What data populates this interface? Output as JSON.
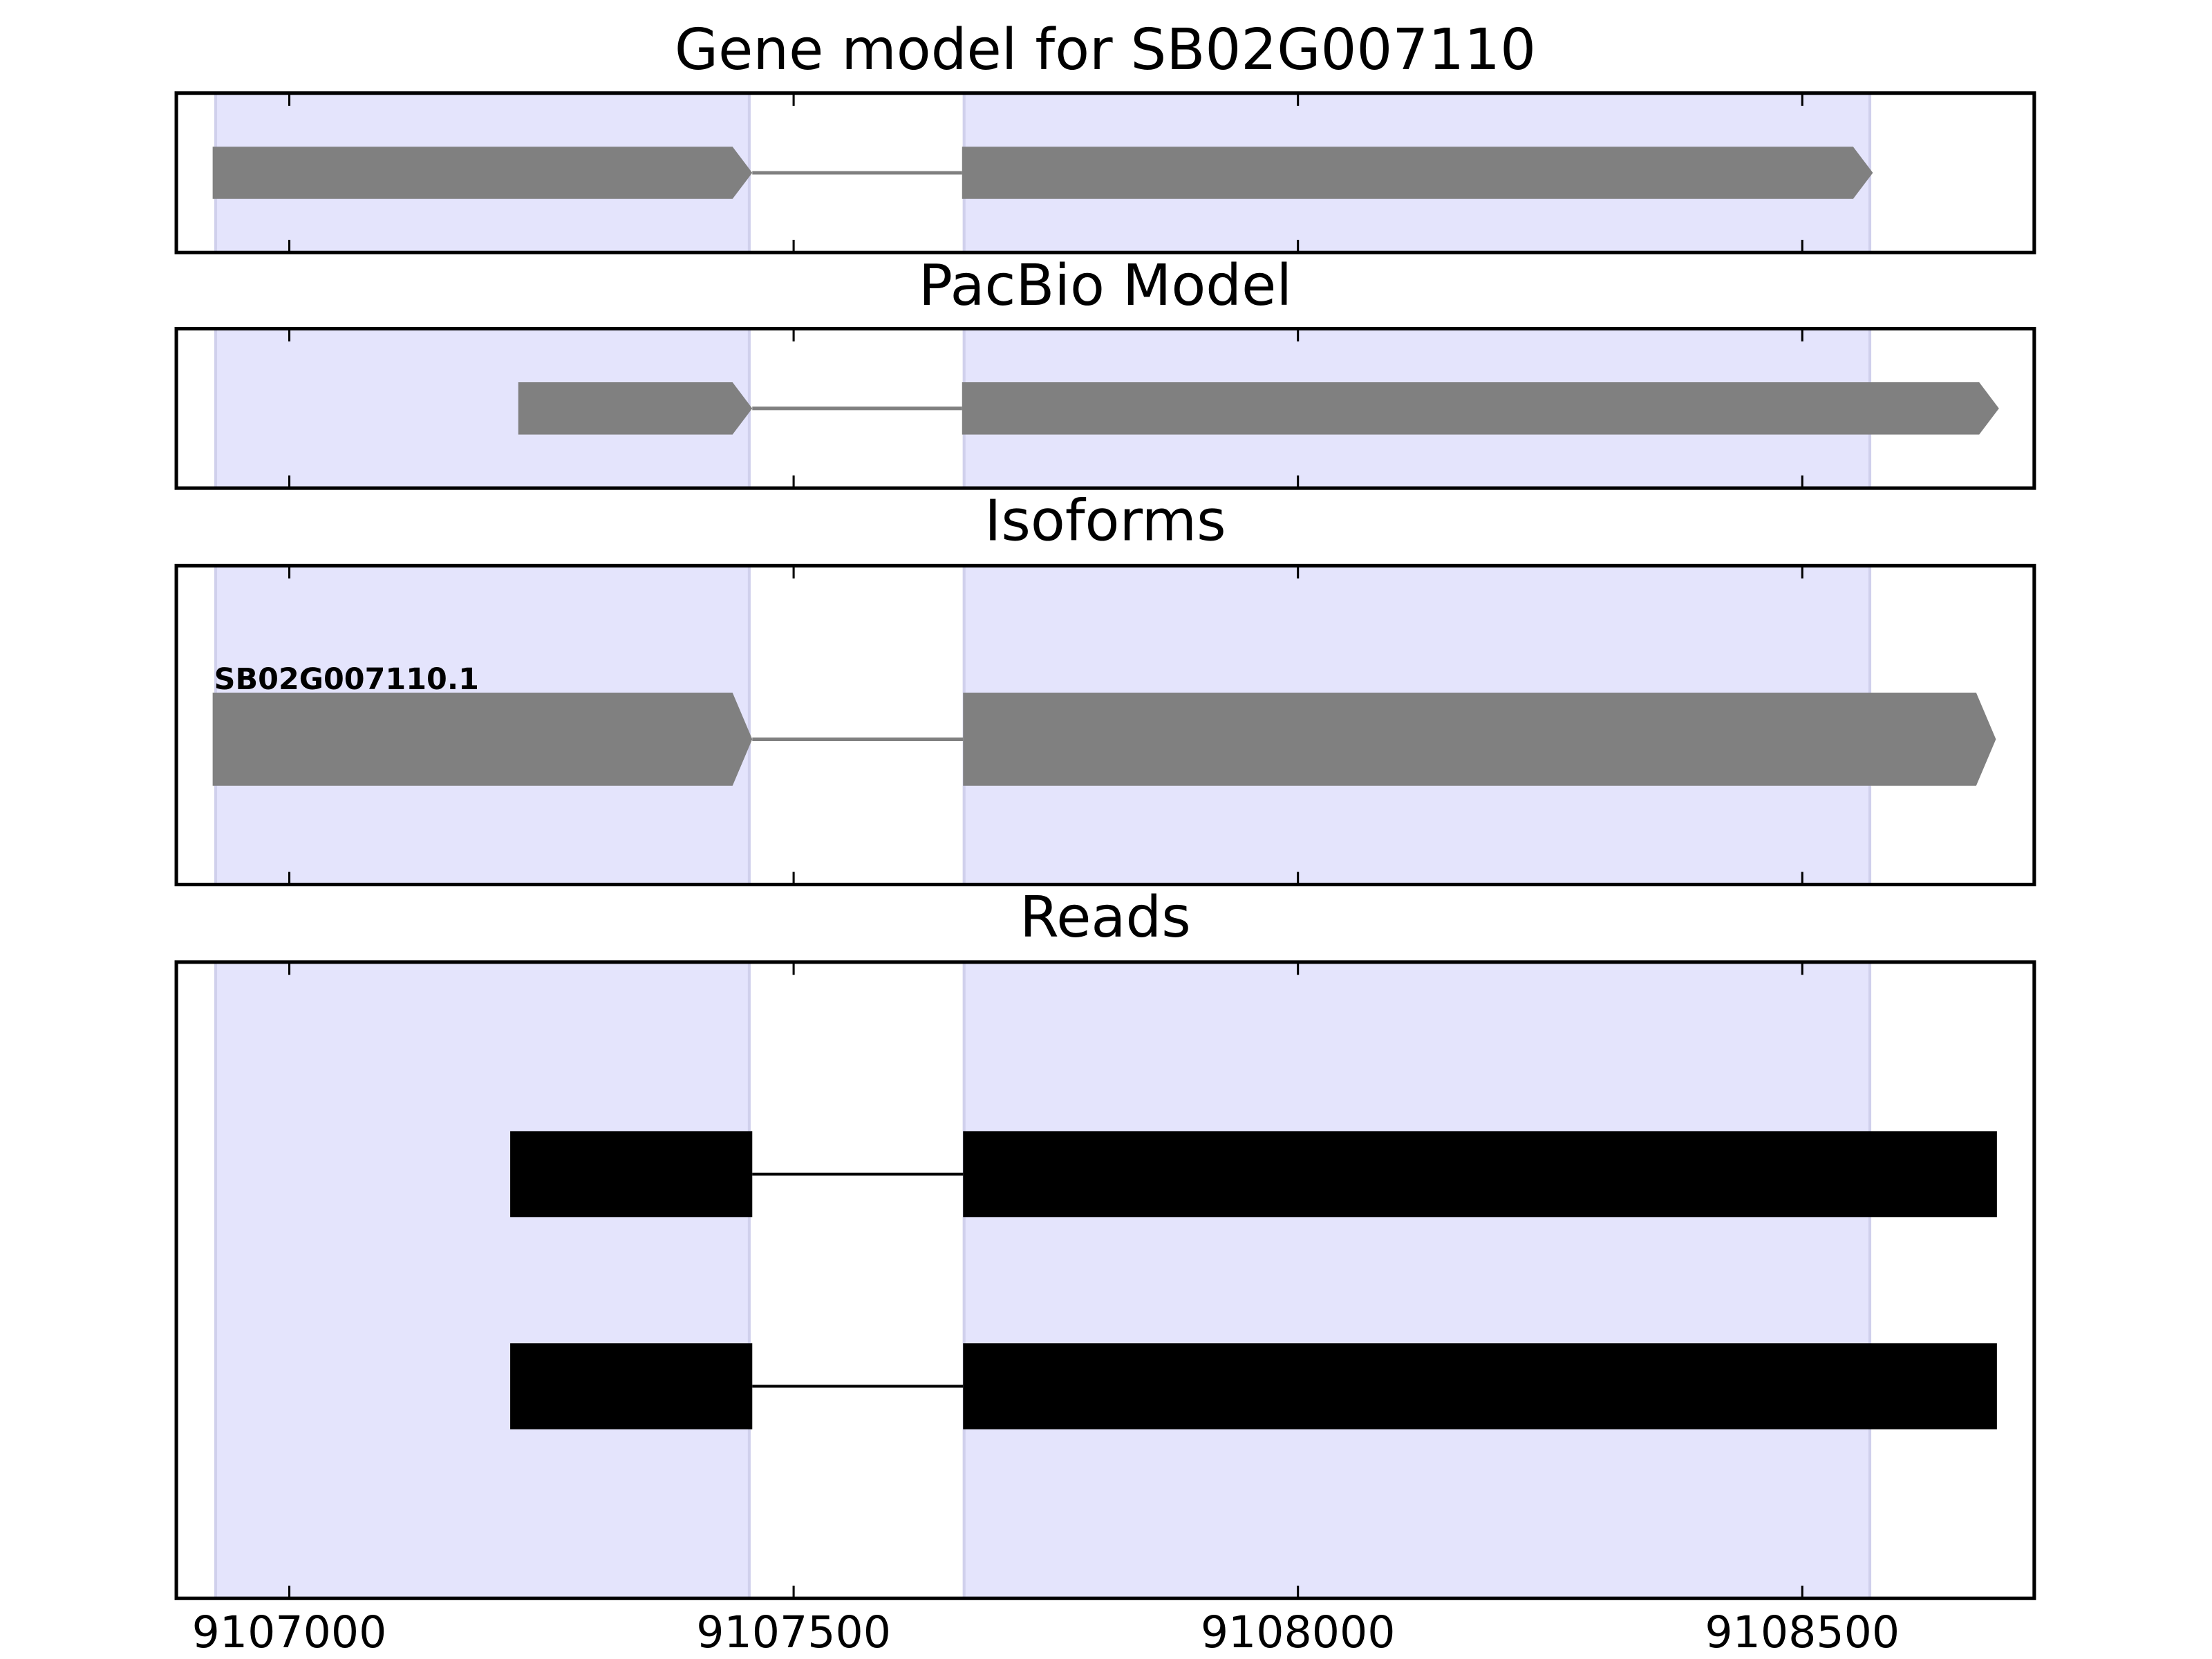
{
  "chart_data": [
    {
      "type": "gene",
      "title": "Gene model for SB02G007110",
      "color": "#808080",
      "arrows": true,
      "region_color": "#e4e4fc",
      "regions": [
        [
          9106927,
          9107456
        ],
        [
          9107669,
          9108567
        ]
      ],
      "xlim": [
        9106888,
        9108730
      ],
      "xticks": [
        9107000,
        9107500,
        9108000,
        9108500
      ],
      "tracks": [
        {
          "exons": [
            [
              9106924,
              9107459
            ],
            [
              9107667,
              9108570
            ]
          ]
        }
      ]
    },
    {
      "type": "gene",
      "title": "PacBio Model",
      "color": "#808080",
      "arrows": true,
      "region_color": "#e4e4fc",
      "regions": [
        [
          9106927,
          9107456
        ],
        [
          9107669,
          9108567
        ]
      ],
      "xlim": [
        9106888,
        9108730
      ],
      "xticks": [
        9107000,
        9107500,
        9108000,
        9108500
      ],
      "tracks": [
        {
          "exons": [
            [
              9107227,
              9107459
            ],
            [
              9107667,
              9108695
            ]
          ]
        }
      ]
    },
    {
      "type": "gene",
      "title": "Isoforms",
      "color": "#808080",
      "arrows": true,
      "region_color": "#e4e4fc",
      "regions": [
        [
          9106927,
          9107456
        ],
        [
          9107669,
          9108567
        ]
      ],
      "xlim": [
        9106888,
        9108730
      ],
      "xticks": [
        9107000,
        9107500,
        9108000,
        9108500
      ],
      "tracks": [
        {
          "name": "SB02G007110.1",
          "exons": [
            [
              9106924,
              9107459
            ],
            [
              9107668,
              9108692
            ]
          ]
        }
      ]
    },
    {
      "type": "gene",
      "title": "Reads",
      "color": "#000000",
      "arrows": false,
      "region_color": "#e4e4fc",
      "regions": [
        [
          9106927,
          9107456
        ],
        [
          9107669,
          9108567
        ]
      ],
      "xlim": [
        9106888,
        9108730
      ],
      "xticks": [
        9107000,
        9107500,
        9108000,
        9108500
      ],
      "tracks": [
        {
          "exons": [
            [
              9107219,
              9107459
            ],
            [
              9107668,
              9108693
            ]
          ]
        },
        {
          "exons": [
            [
              9107219,
              9107459
            ],
            [
              9107668,
              9108693
            ]
          ]
        }
      ]
    }
  ]
}
